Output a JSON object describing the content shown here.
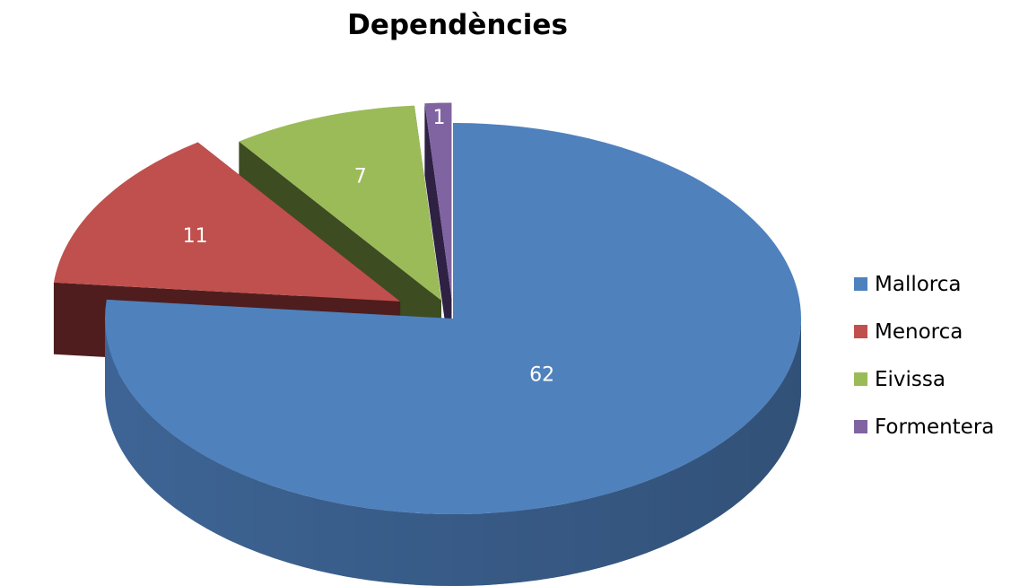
{
  "chart_data": {
    "type": "pie",
    "style": "3d-exploded",
    "title": "Dependències",
    "legend": "right",
    "categories": [
      "Mallorca",
      "Menorca",
      "Eivissa",
      "Formentera"
    ],
    "values": [
      62,
      11,
      7,
      1
    ],
    "colors": [
      "#4F81BD",
      "#C0504D",
      "#9BBB59",
      "#8064A2"
    ],
    "side_colors": [
      "#2F4E75",
      "#4F1D1E",
      "#3E4C22",
      "#2E2143"
    ],
    "label_color": "#FFFFFF"
  }
}
